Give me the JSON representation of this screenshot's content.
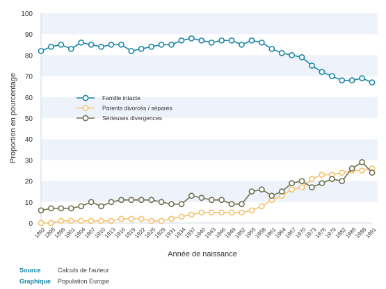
{
  "chart_data": {
    "type": "line",
    "xlabel": "Année de naissance",
    "ylabel": "Proportion en pourcentage",
    "ylim": [
      0,
      100
    ],
    "yticks": [
      0,
      10,
      20,
      30,
      40,
      50,
      60,
      70,
      80,
      90,
      100
    ],
    "grid": "horizontal bands",
    "legend_position": "center-left",
    "categories": [
      "1892",
      "1895",
      "1898",
      "1901",
      "1904",
      "1907",
      "1910",
      "1913",
      "1916",
      "1919",
      "1922",
      "1925",
      "1928",
      "1931",
      "1934",
      "1937",
      "1940",
      "1943",
      "1946",
      "1949",
      "1952",
      "1955",
      "1958",
      "1961",
      "1964",
      "1967",
      "1970",
      "1973",
      "1976",
      "1979",
      "1982",
      "1985",
      "1988",
      "1991"
    ],
    "series": [
      {
        "name": "Famille intacte",
        "color": "#1a86a8",
        "values": [
          82,
          84,
          85,
          83,
          86,
          85,
          84,
          85,
          85,
          82,
          83,
          84,
          85,
          85,
          87,
          88,
          87,
          86,
          87,
          87,
          85,
          87,
          86,
          83,
          81,
          80,
          79,
          75,
          72,
          70,
          68,
          68,
          69,
          67
        ]
      },
      {
        "name": "Parents divorcés / séparés",
        "color": "#f5c26b",
        "values": [
          0,
          0,
          1,
          1,
          1,
          1,
          1,
          1,
          2,
          2,
          2,
          1,
          1,
          2,
          3,
          4,
          5,
          5,
          5,
          5,
          5,
          6,
          8,
          11,
          13,
          16,
          17,
          21,
          23,
          23,
          24,
          25,
          25,
          26
        ]
      },
      {
        "name": "Sérieuses divergences",
        "color": "#6e7250",
        "values": [
          6,
          7,
          7,
          7,
          8,
          10,
          8,
          10,
          11,
          11,
          11,
          11,
          10,
          9,
          9,
          13,
          12,
          11,
          11,
          9,
          9,
          15,
          16,
          13,
          15,
          19,
          20,
          17,
          19,
          21,
          20,
          26,
          29,
          24
        ]
      }
    ]
  },
  "footer": {
    "source_label": "Source",
    "source_value": "Calculs de l'auteur",
    "graph_label": "Graphique",
    "graph_value": "Population Europe"
  }
}
